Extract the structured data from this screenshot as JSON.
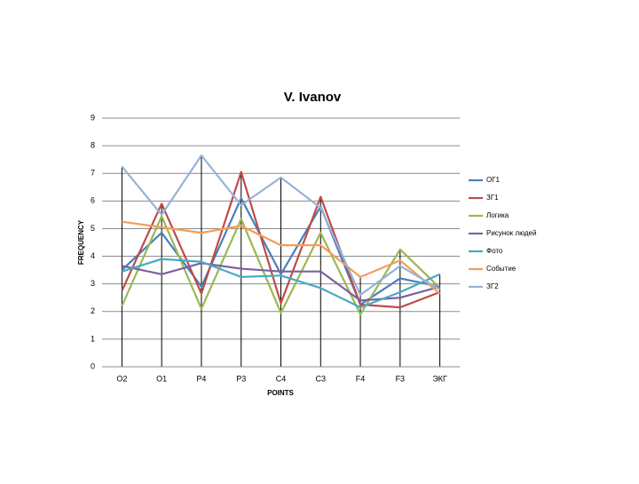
{
  "chart_data": {
    "type": "line",
    "title": "V. Ivanov",
    "x_label": "POINTS",
    "y_label": "FREQUENCY",
    "categories": [
      "O2",
      "O1",
      "P4",
      "P3",
      "C4",
      "C3",
      "F4",
      "F3",
      "ЭКГ"
    ],
    "ylim": [
      0,
      9
    ],
    "yticks": [
      0,
      1,
      2,
      3,
      4,
      5,
      6,
      7,
      8,
      9
    ],
    "grid": true,
    "drop_lines": true,
    "legend": "right",
    "series": [
      {
        "name": "ОГ1",
        "color": "#4a7ebb",
        "values": [
          3.5,
          4.85,
          2.9,
          6.1,
          3.35,
          5.8,
          2.25,
          3.2,
          2.9
        ]
      },
      {
        "name": "ЗГ1",
        "color": "#be4b48",
        "values": [
          2.75,
          5.9,
          2.65,
          7.05,
          2.3,
          6.15,
          2.25,
          2.15,
          2.7
        ]
      },
      {
        "name": "Логика",
        "color": "#98b954",
        "values": [
          2.2,
          5.45,
          2.1,
          5.35,
          1.95,
          4.85,
          1.9,
          4.25,
          2.85
        ]
      },
      {
        "name": "Рисунок людей",
        "color": "#7d60a0",
        "values": [
          3.65,
          3.35,
          3.75,
          3.55,
          3.45,
          3.45,
          2.4,
          2.5,
          2.9
        ]
      },
      {
        "name": "Фото",
        "color": "#46aac5",
        "values": [
          3.45,
          3.9,
          3.8,
          3.25,
          3.3,
          2.85,
          2.15,
          2.7,
          3.35
        ]
      },
      {
        "name": "Событие",
        "color": "#f59d56",
        "values": [
          5.25,
          5.05,
          4.85,
          5.1,
          4.4,
          4.4,
          3.25,
          3.85,
          2.65
        ]
      },
      {
        "name": "ЗГ2",
        "color": "#95b3d7",
        "values": [
          7.25,
          5.5,
          7.65,
          5.85,
          6.85,
          5.75,
          2.6,
          3.65,
          2.8
        ]
      }
    ]
  }
}
